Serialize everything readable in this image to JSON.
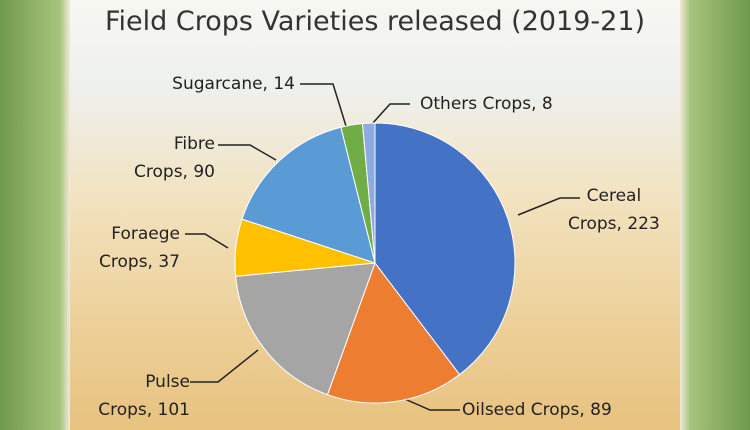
{
  "chart_data": {
    "type": "pie",
    "title": "Field Crops Varieties released (2019-21)",
    "values": [
      223,
      89,
      101,
      37,
      90,
      14,
      8
    ],
    "value_labels": [
      "Cereal\nCrops, 223",
      "Oilseed Crops, 89",
      "Pulse\nCrops, 101",
      "Foraege\nCrops, 37",
      "Fibre\nCrops, 90",
      "Sugarcane, 14",
      "Others Crops, 8"
    ],
    "colors": [
      "#4472c4",
      "#ed7d31",
      "#a5a5a5",
      "#ffc000",
      "#5b9bd5",
      "#70ad47",
      "#8faadc"
    ]
  }
}
